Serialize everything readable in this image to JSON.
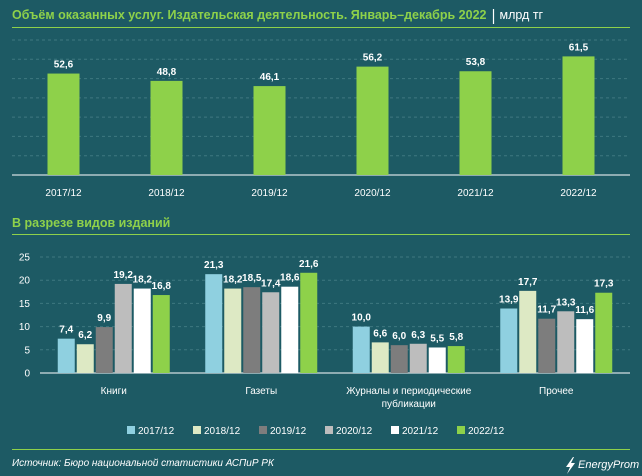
{
  "colors": {
    "background": "#1d5a64",
    "accent_green": "#8ed14a",
    "grid": "#3f7880"
  },
  "header": {
    "title": "Объём оказанных услуг. Издательская деятельность. Январь–декабрь 2022",
    "unit": "млрд тг"
  },
  "section2": {
    "title": "В разрезе видов изданий"
  },
  "footer": {
    "source": "Источник: Бюро национальной статистики АСПиР РК",
    "logo_text": "EnergyProm",
    "logo_icon": "lightning-bolt-icon"
  },
  "chart_data": [
    {
      "type": "bar",
      "categories": [
        "2017/12",
        "2018/12",
        "2019/12",
        "2020/12",
        "2021/12",
        "2022/12"
      ],
      "values": [
        52.6,
        48.8,
        46.1,
        56.2,
        53.8,
        61.5
      ],
      "value_labels": [
        "52,6",
        "48,8",
        "46,1",
        "56,2",
        "53,8",
        "61,5"
      ],
      "ylim": [
        0,
        70
      ],
      "grid": true,
      "color": "#8ed14a"
    },
    {
      "type": "bar",
      "categories": [
        "Книги",
        "Газеты",
        "Журналы и периодические публикации",
        "Прочее"
      ],
      "category_lines": [
        [
          "Книги"
        ],
        [
          "Газеты"
        ],
        [
          "Журналы и периодические",
          "публикации"
        ],
        [
          "Прочее"
        ]
      ],
      "yticks": [
        "0",
        "5",
        "10",
        "15",
        "20",
        "25"
      ],
      "ylim": [
        0,
        25
      ],
      "grid": true,
      "legend_position": "bottom",
      "series": [
        {
          "name": "2017/12",
          "color": "#8fd0e0",
          "values": [
            7.4,
            21.3,
            10.0,
            13.9
          ],
          "labels": [
            "7,4",
            "21,3",
            "10,0",
            "13,9"
          ]
        },
        {
          "name": "2018/12",
          "color": "#dde9c4",
          "values": [
            6.2,
            18.2,
            6.6,
            17.7
          ],
          "labels": [
            "6,2",
            "18,2",
            "6,6",
            "17,7"
          ]
        },
        {
          "name": "2019/12",
          "color": "#7d7d7d",
          "values": [
            9.9,
            18.5,
            6.0,
            11.7
          ],
          "labels": [
            "9,9",
            "18,5",
            "6,0",
            "11,7"
          ]
        },
        {
          "name": "2020/12",
          "color": "#bdbdbd",
          "values": [
            19.2,
            17.4,
            6.3,
            13.3
          ],
          "labels": [
            "19,2",
            "17,4",
            "6,3",
            "13,3"
          ]
        },
        {
          "name": "2021/12",
          "color": "#ffffff",
          "values": [
            18.2,
            18.6,
            5.5,
            11.6
          ],
          "labels": [
            "18,2",
            "18,6",
            "5,5",
            "11,6"
          ]
        },
        {
          "name": "2022/12",
          "color": "#8ed14a",
          "values": [
            16.8,
            21.6,
            5.8,
            17.3
          ],
          "labels": [
            "16,8",
            "21,6",
            "5,8",
            "17,3"
          ]
        }
      ]
    }
  ]
}
